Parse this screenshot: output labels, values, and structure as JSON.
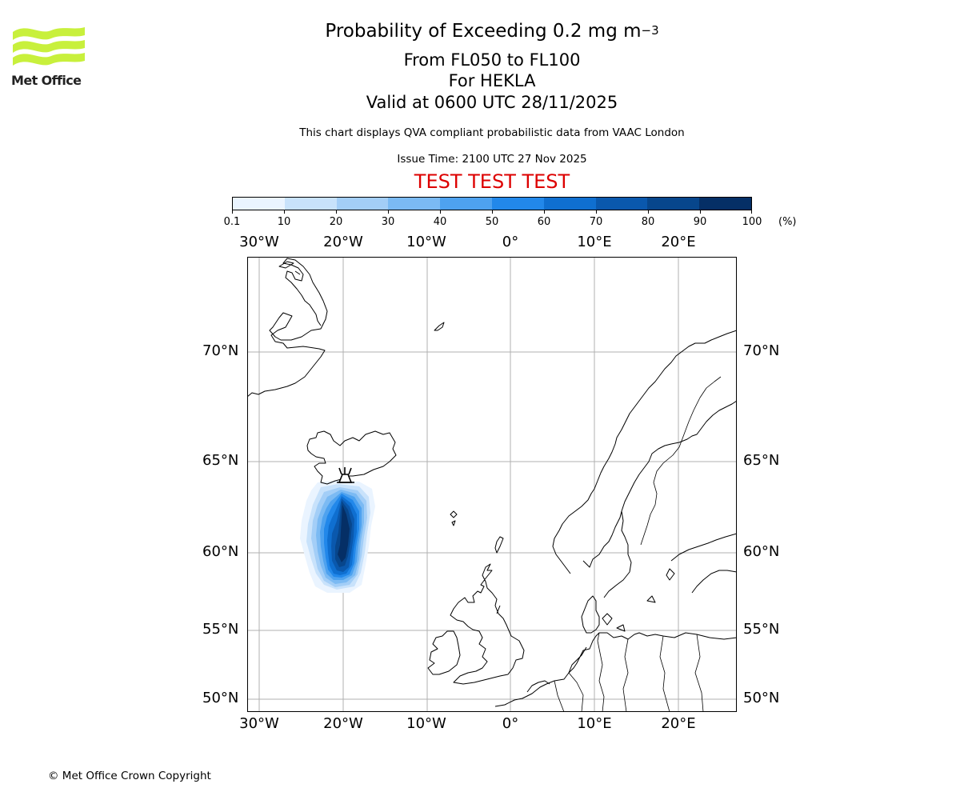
{
  "logo": {
    "text": "Met Office",
    "color": "#c8f03c"
  },
  "title": {
    "line1_prefix": "Probability of Exceeding 0.2 mg m",
    "line1_exponent": "−3",
    "line2": "From FL050 to FL100",
    "line3": "For HEKLA",
    "line4": "Valid at 0600 UTC 28/11/2025"
  },
  "subtitle": "This chart displays QVA compliant probabilistic data from VAAC London",
  "issue_time": "Issue Time: 2100 UTC 27 Nov 2025",
  "test_banner": "TEST TEST TEST",
  "test_color": "#dd0000",
  "colorbar": {
    "labels": [
      "0.1",
      "10",
      "20",
      "30",
      "40",
      "50",
      "60",
      "70",
      "80",
      "90",
      "100"
    ],
    "unit": "(%)",
    "colors": [
      "#eaf4ff",
      "#c8e2fb",
      "#a3cef7",
      "#7bbaf3",
      "#4ea2ef",
      "#2288ea",
      "#0f6fd0",
      "#0a58ad",
      "#07468c",
      "#052f66"
    ]
  },
  "map": {
    "lon_labels": [
      "30°W",
      "20°W",
      "10°W",
      "0°",
      "10°E",
      "20°E"
    ],
    "lat_labels": [
      "70°N",
      "65°N",
      "60°N",
      "55°N",
      "50°N"
    ],
    "volcano": "HEKLA",
    "volcano_symbol": "volcano-icon"
  },
  "copyright": "© Met Office Crown Copyright"
}
